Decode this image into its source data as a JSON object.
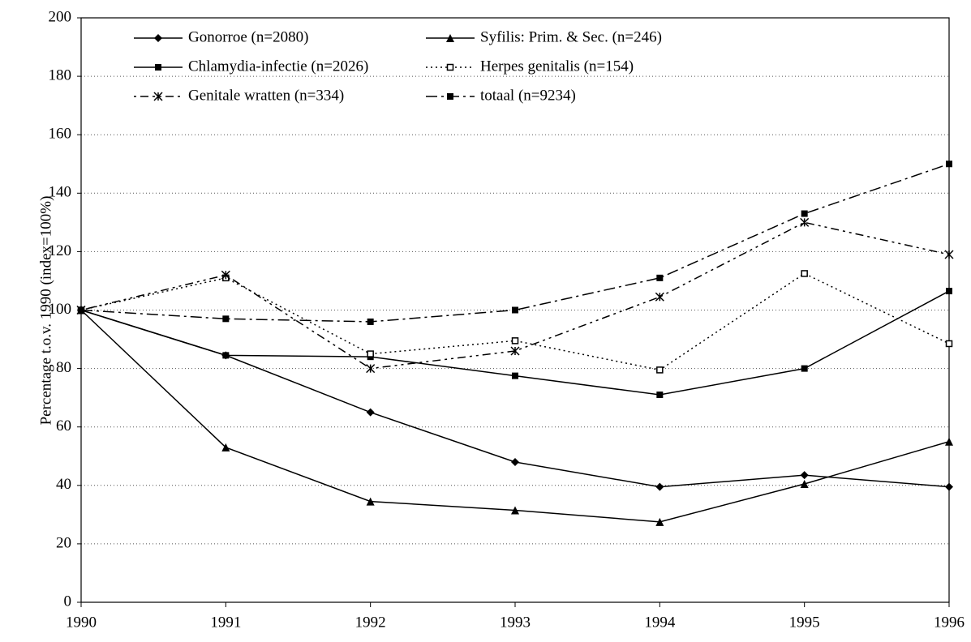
{
  "chart_data": {
    "type": "line",
    "y_label": "Percentage t.o.v. 1990 (index=100%)",
    "x": [
      1990,
      1991,
      1992,
      1993,
      1994,
      1995,
      1996
    ],
    "xlim": [
      1990,
      1996
    ],
    "xticks": [
      1990,
      1991,
      1992,
      1993,
      1994,
      1995,
      1996
    ],
    "ylim": [
      0,
      200
    ],
    "yticks": [
      0,
      20,
      40,
      60,
      80,
      100,
      120,
      140,
      160,
      180,
      200
    ],
    "grid": true,
    "series": [
      {
        "name": "Gonorroe (n=2080)",
        "color": "#000000",
        "marker": "diamond",
        "linestyle": "solid",
        "values": [
          100,
          84.5,
          65,
          48,
          39.5,
          43.5,
          39.5
        ]
      },
      {
        "name": "Syfilis: Prim. & Sec. (n=246)",
        "color": "#000000",
        "marker": "triangle",
        "linestyle": "solid",
        "values": [
          100,
          53,
          34.5,
          31.5,
          27.5,
          40.5,
          55
        ]
      },
      {
        "name": "Chlamydia-infectie (n=2026)",
        "color": "#000000",
        "marker": "square",
        "linestyle": "solid",
        "values": [
          100,
          84.5,
          84,
          77.5,
          71,
          80,
          106.5
        ]
      },
      {
        "name": "Herpes genitalis (n=154)",
        "color": "#000000",
        "marker": "open-square",
        "linestyle": "dotted",
        "values": [
          100,
          111,
          85,
          89.5,
          79.5,
          112.5,
          88.5
        ]
      },
      {
        "name": "Genitale wratten (n=334)",
        "color": "#000000",
        "marker": "asterisk",
        "linestyle": "dashdotdot",
        "values": [
          100,
          112,
          80,
          86,
          104.5,
          130,
          119
        ]
      },
      {
        "name": "totaal (n=9234)",
        "color": "#000000",
        "marker": "square",
        "linestyle": "dashdot",
        "values": [
          100,
          97,
          96,
          100,
          111,
          133,
          150
        ]
      }
    ]
  }
}
